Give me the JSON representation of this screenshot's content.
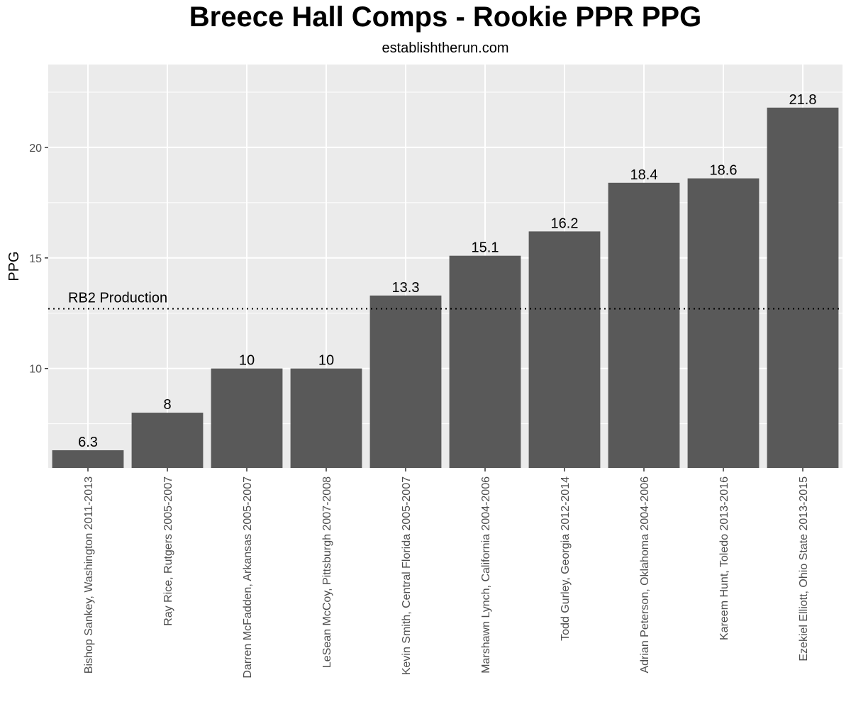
{
  "chart_data": {
    "type": "bar",
    "title": "Breece Hall Comps - Rookie PPR PPG",
    "subtitle": "establishtherun.com",
    "xlabel": "",
    "ylabel": "PPG",
    "categories": [
      "Bishop Sankey, Washington 2011-2013",
      "Ray Rice, Rutgers 2005-2007",
      "Darren McFadden, Arkansas 2005-2007",
      "LeSean McCoy, Pittsburgh 2007-2008",
      "Kevin Smith, Central Florida 2005-2007",
      "Marshawn Lynch, California 2004-2006",
      "Todd Gurley, Georgia 2012-2014",
      "Adrian Peterson, Oklahoma 2004-2006",
      "Kareem Hunt, Toledo 2013-2016",
      "Ezekiel Elliott, Ohio State 2013-2015"
    ],
    "values": [
      6.3,
      8,
      10,
      10,
      13.3,
      15.1,
      16.2,
      18.4,
      18.6,
      21.8
    ],
    "value_labels": [
      "6.3",
      "8",
      "10",
      "10",
      "13.3",
      "15.1",
      "16.2",
      "18.4",
      "18.6",
      "21.8"
    ],
    "yticks": [
      10,
      15,
      20
    ],
    "ytick_labels": [
      "10",
      "15",
      "20"
    ],
    "ylim": [
      5.5,
      23.75
    ],
    "reference_line": {
      "value": 12.7,
      "label": "RB2 Production",
      "style": "dotted"
    },
    "grid": true,
    "colors": {
      "bar": "#595959",
      "panel": "#ebebeb",
      "grid": "#ffffff",
      "text": "#000000",
      "tick_text": "#4d4d4d"
    }
  }
}
